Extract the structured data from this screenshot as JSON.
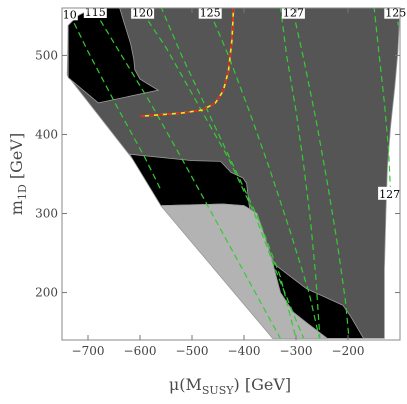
{
  "chart_data": {
    "type": "contour",
    "xlabel": "μ(M",
    "xlabel_sub": "SUSY",
    "xlabel_unit": ") [GeV]",
    "ylabel": "m",
    "ylabel_sub": "1D",
    "ylabel_unit": " [GeV]",
    "xlim": [
      -750,
      -100
    ],
    "ylim": [
      140,
      560
    ],
    "xticks": [
      {
        "value": -700,
        "label": "−700"
      },
      {
        "value": -600,
        "label": "−600"
      },
      {
        "value": -500,
        "label": "−500"
      },
      {
        "value": -400,
        "label": "−400"
      },
      {
        "value": -300,
        "label": "−300"
      },
      {
        "value": -200,
        "label": "−200"
      }
    ],
    "yticks": [
      {
        "value": 200,
        "label": "200"
      },
      {
        "value": 300,
        "label": "300"
      },
      {
        "value": 400,
        "label": "400"
      },
      {
        "value": 500,
        "label": "500"
      }
    ],
    "colors": {
      "dark_gray": "#555555",
      "black": "#000000",
      "light_gray": "#b3b3b3",
      "contour_green": "#33cc33",
      "bound_red": "#e32020",
      "bound_yellow": "#f2e81a",
      "frame": "#888888"
    },
    "regions": [
      {
        "name": "black-upper-left",
        "fill": "black",
        "points": [
          [
            -738,
            538
          ],
          [
            -720,
            550
          ],
          [
            -685,
            562
          ],
          [
            -640,
            562
          ],
          [
            -630,
            540
          ],
          [
            -618,
            515
          ],
          [
            -612,
            495
          ],
          [
            -610,
            482
          ],
          [
            -600,
            470
          ],
          [
            -580,
            462
          ],
          [
            -565,
            456
          ],
          [
            -680,
            440
          ],
          [
            -738,
            472
          ]
        ]
      },
      {
        "name": "black-band",
        "fill": "black",
        "points": [
          [
            -620,
            375
          ],
          [
            -500,
            367
          ],
          [
            -445,
            366
          ],
          [
            -425,
            352
          ],
          [
            -402,
            345
          ],
          [
            -395,
            338
          ],
          [
            -390,
            310
          ],
          [
            -385,
            295
          ],
          [
            -370,
            275
          ],
          [
            -340,
            235
          ],
          [
            -280,
            205
          ],
          [
            -230,
            190
          ],
          [
            -210,
            184
          ],
          [
            -195,
            170
          ],
          [
            -170,
            142
          ],
          [
            -240,
            142
          ],
          [
            -280,
            162
          ],
          [
            -305,
            175
          ],
          [
            -330,
            200
          ],
          [
            -350,
            250
          ],
          [
            -365,
            280
          ],
          [
            -375,
            300
          ],
          [
            -400,
            310
          ],
          [
            -440,
            312
          ],
          [
            -560,
            310
          ]
        ]
      },
      {
        "name": "light-gray-lower",
        "fill": "light_gray",
        "points": [
          [
            -560,
            310
          ],
          [
            -440,
            312
          ],
          [
            -400,
            310
          ],
          [
            -375,
            300
          ],
          [
            -365,
            280
          ],
          [
            -350,
            250
          ],
          [
            -330,
            200
          ],
          [
            -305,
            175
          ],
          [
            -280,
            162
          ],
          [
            -240,
            142
          ],
          [
            -345,
            142
          ]
        ]
      }
    ],
    "dark_region_outline": [
      [
        -738,
        538
      ],
      [
        -720,
        550
      ],
      [
        -685,
        562
      ],
      [
        -100,
        562
      ],
      [
        -104,
        505
      ],
      [
        -110,
        460
      ],
      [
        -118,
        410
      ],
      [
        -124,
        360
      ],
      [
        -127,
        305
      ],
      [
        -130,
        230
      ],
      [
        -130,
        142
      ],
      [
        -345,
        142
      ],
      [
        -740,
        475
      ]
    ],
    "boundary_curve": [
      [
        -600,
        423
      ],
      [
        -560,
        425
      ],
      [
        -520,
        427
      ],
      [
        -480,
        431
      ],
      [
        -455,
        440
      ],
      [
        -440,
        455
      ],
      [
        -430,
        480
      ],
      [
        -423,
        520
      ],
      [
        -420,
        562
      ]
    ],
    "contours": [
      {
        "label": "10",
        "label_at": [
          -735,
          552
        ],
        "points": [
          [
            -735,
            552
          ],
          [
            -700,
            505
          ],
          [
            -640,
            430
          ],
          [
            -590,
            370
          ],
          [
            -560,
            330
          ]
        ]
      },
      {
        "label": "115",
        "label_at": [
          -686,
          555
        ],
        "points": [
          [
            -686,
            555
          ],
          [
            -640,
            505
          ],
          [
            -580,
            440
          ],
          [
            -520,
            370
          ],
          [
            -470,
            310
          ],
          [
            -420,
            250
          ],
          [
            -370,
            190
          ],
          [
            -330,
            142
          ]
        ]
      },
      {
        "label": "120",
        "label_at": [
          -595,
          554
        ],
        "points": [
          [
            -595,
            554
          ],
          [
            -550,
            510
          ],
          [
            -490,
            440
          ],
          [
            -430,
            370
          ],
          [
            -380,
            300
          ],
          [
            -340,
            230
          ],
          [
            -300,
            165
          ],
          [
            -285,
            142
          ]
        ]
      },
      {
        "label": "125",
        "label_at": [
          -465,
          554
        ],
        "points": [
          [
            -465,
            554
          ],
          [
            -430,
            500
          ],
          [
            -390,
            430
          ],
          [
            -350,
            355
          ],
          [
            -310,
            275
          ],
          [
            -275,
            200
          ],
          [
            -255,
            142
          ]
        ]
      },
      {
        "label": "127",
        "label_at": [
          -305,
          554
        ],
        "points": [
          [
            -305,
            554
          ],
          [
            -285,
            495
          ],
          [
            -262,
            420
          ],
          [
            -240,
            340
          ],
          [
            -220,
            260
          ],
          [
            -205,
            190
          ],
          [
            -198,
            142
          ]
        ]
      },
      {
        "label": "125",
        "label_at": [
          -108,
          554
        ],
        "points": [
          [
            -108,
            555
          ],
          [
            -103,
            538
          ]
        ]
      },
      {
        "label": "127",
        "label_at": [
          -120,
          325
        ],
        "points": [
          [
            -150,
            562
          ],
          [
            -140,
            500
          ],
          [
            -130,
            440
          ],
          [
            -122,
            380
          ],
          [
            -118,
            325
          ]
        ]
      },
      {
        "label": "",
        "label_at": null,
        "points": [
          [
            -330,
            562
          ],
          [
            -318,
            500
          ],
          [
            -300,
            430
          ],
          [
            -285,
            360
          ],
          [
            -272,
            290
          ],
          [
            -262,
            220
          ],
          [
            -254,
            142
          ]
        ]
      },
      {
        "label": "",
        "label_at": null,
        "points": [
          [
            -560,
            562
          ],
          [
            -520,
            500
          ],
          [
            -470,
            430
          ],
          [
            -420,
            360
          ],
          [
            -370,
            290
          ],
          [
            -330,
            220
          ],
          [
            -300,
            142
          ]
        ]
      }
    ]
  }
}
